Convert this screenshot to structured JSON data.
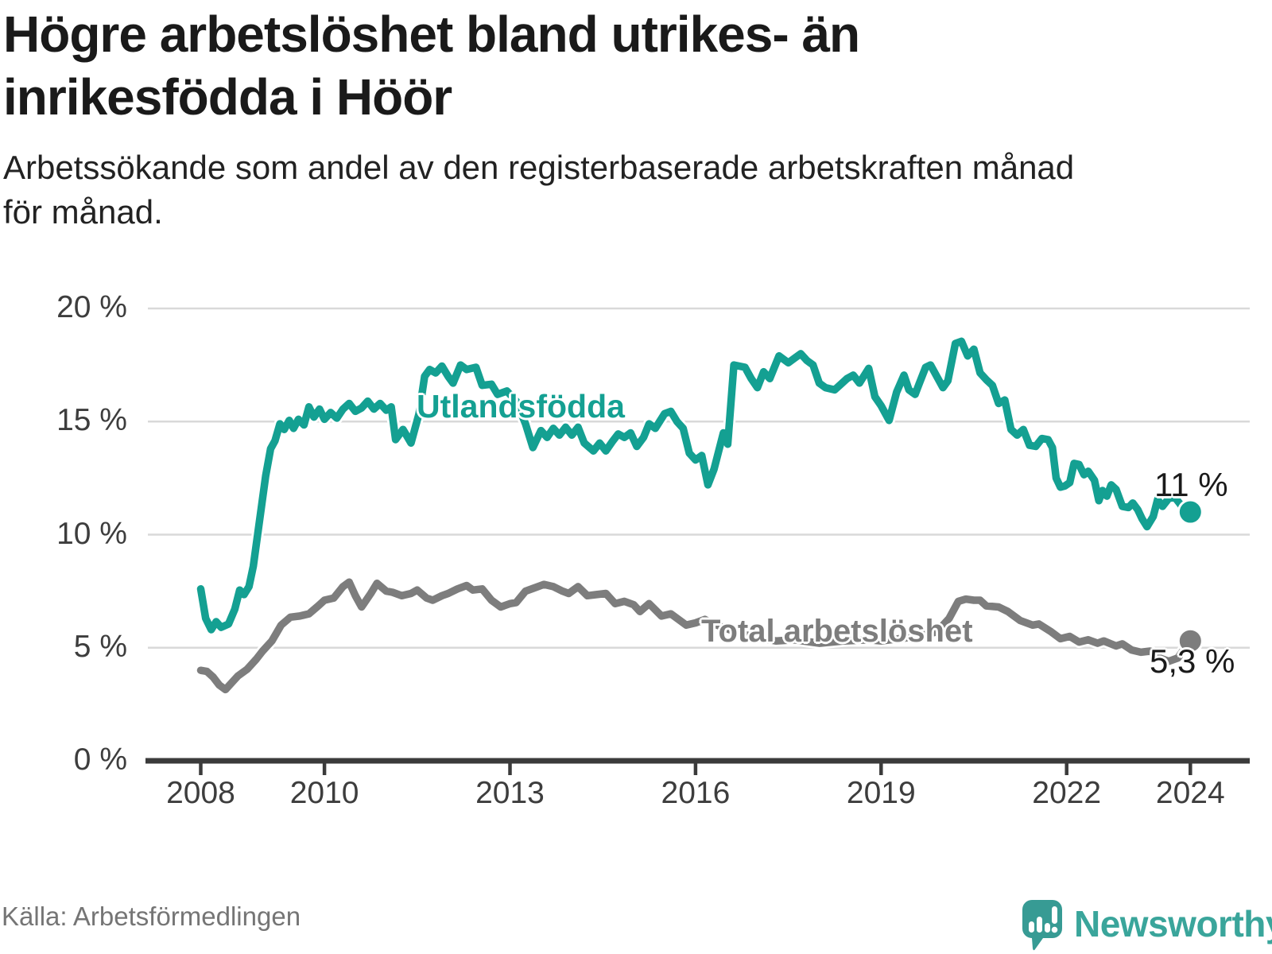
{
  "header": {
    "title": "Högre arbetslöshet bland utrikes- än\ninrikesfödda i Höör",
    "subtitle": "Arbetssökande som andel av den registerbaserade arbetskraften månad\nför månad."
  },
  "footer": {
    "source": "Källa: Arbetsförmedlingen",
    "brand": "Newsworthy"
  },
  "colors": {
    "utlandsfodda": "#14a092",
    "total": "#7d7d7d",
    "grid": "#d9d9d9",
    "axis": "#3b3b3b",
    "value_label": "#1a1a1a",
    "brand_icon": "#379b94",
    "brand_text": "#3aa59b"
  },
  "chart_data": {
    "type": "line",
    "title": "Högre arbetslöshet bland utrikes- än inrikesfödda i Höör",
    "xlabel": "",
    "ylabel": "",
    "ylim": [
      0,
      20
    ],
    "xlim": [
      2007.15,
      2024.95
    ],
    "grid": true,
    "legend_position": "inline-on-line",
    "y_ticks": [
      {
        "label": "20 %",
        "value": 20
      },
      {
        "label": "15 %",
        "value": 15
      },
      {
        "label": "10 %",
        "value": 10
      },
      {
        "label": "5 %",
        "value": 5
      },
      {
        "label": "0 %",
        "value": 0
      }
    ],
    "x_ticks": [
      {
        "label": "2008",
        "year": 2008
      },
      {
        "label": "2010",
        "year": 2010
      },
      {
        "label": "2013",
        "year": 2013
      },
      {
        "label": "2016",
        "year": 2016
      },
      {
        "label": "2019",
        "year": 2019
      },
      {
        "label": "2022",
        "year": 2022
      },
      {
        "label": "2024",
        "year": 2024
      }
    ],
    "series": [
      {
        "name": "Utlandsfödda",
        "label": "Utlandsfödda",
        "end_label": "11 %",
        "end_value": 11.0,
        "color_key": "utlandsfodda",
        "points": [
          [
            2008.0,
            7.6
          ],
          [
            2008.08,
            6.3
          ],
          [
            2008.17,
            5.8
          ],
          [
            2008.25,
            6.15
          ],
          [
            2008.33,
            5.9
          ],
          [
            2008.45,
            6.05
          ],
          [
            2008.55,
            6.7
          ],
          [
            2008.63,
            7.55
          ],
          [
            2008.7,
            7.35
          ],
          [
            2008.78,
            7.7
          ],
          [
            2008.85,
            8.6
          ],
          [
            2008.95,
            10.6
          ],
          [
            2009.05,
            12.6
          ],
          [
            2009.13,
            13.8
          ],
          [
            2009.2,
            14.15
          ],
          [
            2009.28,
            14.9
          ],
          [
            2009.35,
            14.65
          ],
          [
            2009.43,
            15.05
          ],
          [
            2009.5,
            14.7
          ],
          [
            2009.58,
            15.1
          ],
          [
            2009.67,
            14.85
          ],
          [
            2009.75,
            15.65
          ],
          [
            2009.83,
            15.2
          ],
          [
            2009.92,
            15.55
          ],
          [
            2010.0,
            15.1
          ],
          [
            2010.1,
            15.4
          ],
          [
            2010.2,
            15.15
          ],
          [
            2010.3,
            15.55
          ],
          [
            2010.4,
            15.8
          ],
          [
            2010.5,
            15.45
          ],
          [
            2010.6,
            15.6
          ],
          [
            2010.7,
            15.9
          ],
          [
            2010.8,
            15.55
          ],
          [
            2010.9,
            15.8
          ],
          [
            2011.0,
            15.5
          ],
          [
            2011.08,
            15.65
          ],
          [
            2011.15,
            14.2
          ],
          [
            2011.27,
            14.65
          ],
          [
            2011.4,
            14.05
          ],
          [
            2011.53,
            15.35
          ],
          [
            2011.62,
            17.0
          ],
          [
            2011.7,
            17.3
          ],
          [
            2011.8,
            17.15
          ],
          [
            2011.9,
            17.45
          ],
          [
            2012.0,
            17.0
          ],
          [
            2012.08,
            16.7
          ],
          [
            2012.2,
            17.5
          ],
          [
            2012.3,
            17.3
          ],
          [
            2012.45,
            17.4
          ],
          [
            2012.55,
            16.6
          ],
          [
            2012.7,
            16.65
          ],
          [
            2012.8,
            16.2
          ],
          [
            2012.95,
            16.35
          ],
          [
            2013.1,
            15.9
          ],
          [
            2013.25,
            14.9
          ],
          [
            2013.37,
            13.85
          ],
          [
            2013.5,
            14.6
          ],
          [
            2013.6,
            14.3
          ],
          [
            2013.7,
            14.7
          ],
          [
            2013.8,
            14.4
          ],
          [
            2013.9,
            14.75
          ],
          [
            2014.0,
            14.4
          ],
          [
            2014.1,
            14.75
          ],
          [
            2014.2,
            14.05
          ],
          [
            2014.35,
            13.7
          ],
          [
            2014.45,
            14.05
          ],
          [
            2014.55,
            13.7
          ],
          [
            2014.65,
            14.1
          ],
          [
            2014.75,
            14.45
          ],
          [
            2014.85,
            14.3
          ],
          [
            2014.95,
            14.5
          ],
          [
            2015.05,
            13.9
          ],
          [
            2015.16,
            14.3
          ],
          [
            2015.25,
            14.9
          ],
          [
            2015.35,
            14.7
          ],
          [
            2015.5,
            15.35
          ],
          [
            2015.6,
            15.45
          ],
          [
            2015.7,
            15.0
          ],
          [
            2015.8,
            14.7
          ],
          [
            2015.9,
            13.6
          ],
          [
            2016.0,
            13.3
          ],
          [
            2016.1,
            13.5
          ],
          [
            2016.2,
            12.2
          ],
          [
            2016.3,
            12.9
          ],
          [
            2016.45,
            14.5
          ],
          [
            2016.52,
            14.0
          ],
          [
            2016.62,
            17.5
          ],
          [
            2016.8,
            17.4
          ],
          [
            2016.9,
            16.9
          ],
          [
            2017.0,
            16.5
          ],
          [
            2017.1,
            17.2
          ],
          [
            2017.2,
            16.9
          ],
          [
            2017.35,
            17.9
          ],
          [
            2017.5,
            17.6
          ],
          [
            2017.6,
            17.8
          ],
          [
            2017.7,
            18.0
          ],
          [
            2017.8,
            17.7
          ],
          [
            2017.9,
            17.5
          ],
          [
            2018.0,
            16.7
          ],
          [
            2018.1,
            16.5
          ],
          [
            2018.25,
            16.4
          ],
          [
            2018.35,
            16.65
          ],
          [
            2018.45,
            16.9
          ],
          [
            2018.55,
            17.05
          ],
          [
            2018.65,
            16.7
          ],
          [
            2018.8,
            17.35
          ],
          [
            2018.9,
            16.1
          ],
          [
            2019.0,
            15.7
          ],
          [
            2019.13,
            15.05
          ],
          [
            2019.25,
            16.3
          ],
          [
            2019.37,
            17.05
          ],
          [
            2019.45,
            16.4
          ],
          [
            2019.55,
            16.2
          ],
          [
            2019.62,
            16.7
          ],
          [
            2019.72,
            17.4
          ],
          [
            2019.8,
            17.5
          ],
          [
            2019.9,
            17.0
          ],
          [
            2020.0,
            16.5
          ],
          [
            2020.08,
            16.8
          ],
          [
            2020.2,
            18.45
          ],
          [
            2020.3,
            18.55
          ],
          [
            2020.4,
            17.9
          ],
          [
            2020.5,
            18.2
          ],
          [
            2020.6,
            17.15
          ],
          [
            2020.7,
            16.85
          ],
          [
            2020.8,
            16.6
          ],
          [
            2020.9,
            15.8
          ],
          [
            2021.0,
            15.95
          ],
          [
            2021.1,
            14.65
          ],
          [
            2021.2,
            14.4
          ],
          [
            2021.3,
            14.65
          ],
          [
            2021.4,
            13.95
          ],
          [
            2021.5,
            13.9
          ],
          [
            2021.6,
            14.25
          ],
          [
            2021.7,
            14.2
          ],
          [
            2021.77,
            13.85
          ],
          [
            2021.83,
            12.5
          ],
          [
            2021.9,
            12.1
          ],
          [
            2021.97,
            12.15
          ],
          [
            2022.05,
            12.3
          ],
          [
            2022.12,
            13.15
          ],
          [
            2022.2,
            13.1
          ],
          [
            2022.28,
            12.65
          ],
          [
            2022.35,
            12.8
          ],
          [
            2022.45,
            12.4
          ],
          [
            2022.52,
            11.5
          ],
          [
            2022.58,
            11.95
          ],
          [
            2022.65,
            11.7
          ],
          [
            2022.72,
            12.2
          ],
          [
            2022.8,
            12.0
          ],
          [
            2022.9,
            11.25
          ],
          [
            2023.0,
            11.2
          ],
          [
            2023.07,
            11.4
          ],
          [
            2023.15,
            11.1
          ],
          [
            2023.22,
            10.7
          ],
          [
            2023.3,
            10.35
          ],
          [
            2023.4,
            10.8
          ],
          [
            2023.47,
            11.55
          ],
          [
            2023.55,
            11.25
          ],
          [
            2023.65,
            11.6
          ],
          [
            2023.75,
            11.65
          ],
          [
            2023.85,
            11.3
          ],
          [
            2023.93,
            11.05
          ],
          [
            2024.0,
            11.0
          ]
        ]
      },
      {
        "name": "Total arbetslöshet",
        "label": "Total arbetslöshet",
        "end_label": "5,3 %",
        "end_value": 5.3,
        "color_key": "total",
        "points": [
          [
            2008.0,
            4.0
          ],
          [
            2008.1,
            3.95
          ],
          [
            2008.2,
            3.7
          ],
          [
            2008.3,
            3.35
          ],
          [
            2008.4,
            3.15
          ],
          [
            2008.5,
            3.45
          ],
          [
            2008.6,
            3.75
          ],
          [
            2008.75,
            4.05
          ],
          [
            2008.9,
            4.5
          ],
          [
            2009.0,
            4.85
          ],
          [
            2009.15,
            5.3
          ],
          [
            2009.3,
            6.0
          ],
          [
            2009.45,
            6.35
          ],
          [
            2009.6,
            6.4
          ],
          [
            2009.75,
            6.5
          ],
          [
            2009.9,
            6.85
          ],
          [
            2010.0,
            7.1
          ],
          [
            2010.15,
            7.2
          ],
          [
            2010.3,
            7.7
          ],
          [
            2010.4,
            7.9
          ],
          [
            2010.5,
            7.3
          ],
          [
            2010.6,
            6.8
          ],
          [
            2010.75,
            7.4
          ],
          [
            2010.85,
            7.85
          ],
          [
            2011.0,
            7.5
          ],
          [
            2011.1,
            7.45
          ],
          [
            2011.25,
            7.3
          ],
          [
            2011.4,
            7.4
          ],
          [
            2011.5,
            7.55
          ],
          [
            2011.65,
            7.2
          ],
          [
            2011.75,
            7.1
          ],
          [
            2011.9,
            7.3
          ],
          [
            2012.0,
            7.4
          ],
          [
            2012.15,
            7.6
          ],
          [
            2012.3,
            7.75
          ],
          [
            2012.4,
            7.55
          ],
          [
            2012.55,
            7.6
          ],
          [
            2012.7,
            7.1
          ],
          [
            2012.85,
            6.8
          ],
          [
            2013.0,
            6.95
          ],
          [
            2013.1,
            7.0
          ],
          [
            2013.25,
            7.5
          ],
          [
            2013.4,
            7.65
          ],
          [
            2013.55,
            7.8
          ],
          [
            2013.7,
            7.7
          ],
          [
            2013.85,
            7.5
          ],
          [
            2013.95,
            7.4
          ],
          [
            2014.1,
            7.7
          ],
          [
            2014.25,
            7.3
          ],
          [
            2014.4,
            7.35
          ],
          [
            2014.55,
            7.4
          ],
          [
            2014.7,
            6.95
          ],
          [
            2014.85,
            7.05
          ],
          [
            2015.0,
            6.9
          ],
          [
            2015.1,
            6.6
          ],
          [
            2015.25,
            6.95
          ],
          [
            2015.45,
            6.4
          ],
          [
            2015.6,
            6.5
          ],
          [
            2015.75,
            6.2
          ],
          [
            2015.85,
            6.0
          ],
          [
            2016.0,
            6.1
          ],
          [
            2016.15,
            6.25
          ],
          [
            2016.3,
            6.05
          ],
          [
            2016.45,
            5.9
          ],
          [
            2016.6,
            5.75
          ],
          [
            2016.75,
            5.6
          ],
          [
            2017.0,
            5.45
          ],
          [
            2017.3,
            5.3
          ],
          [
            2017.6,
            5.35
          ],
          [
            2018.0,
            5.2
          ],
          [
            2018.4,
            5.3
          ],
          [
            2018.8,
            5.35
          ],
          [
            2019.0,
            5.3
          ],
          [
            2019.3,
            5.4
          ],
          [
            2019.6,
            5.5
          ],
          [
            2019.9,
            5.7
          ],
          [
            2020.1,
            6.3
          ],
          [
            2020.25,
            7.05
          ],
          [
            2020.37,
            7.15
          ],
          [
            2020.5,
            7.1
          ],
          [
            2020.6,
            7.1
          ],
          [
            2020.7,
            6.85
          ],
          [
            2020.9,
            6.8
          ],
          [
            2021.05,
            6.6
          ],
          [
            2021.25,
            6.2
          ],
          [
            2021.45,
            6.0
          ],
          [
            2021.55,
            6.05
          ],
          [
            2021.75,
            5.7
          ],
          [
            2021.9,
            5.4
          ],
          [
            2022.05,
            5.5
          ],
          [
            2022.2,
            5.25
          ],
          [
            2022.35,
            5.35
          ],
          [
            2022.5,
            5.2
          ],
          [
            2022.6,
            5.3
          ],
          [
            2022.8,
            5.08
          ],
          [
            2022.9,
            5.17
          ],
          [
            2023.05,
            4.9
          ],
          [
            2023.2,
            4.8
          ],
          [
            2023.35,
            4.85
          ],
          [
            2023.5,
            4.55
          ],
          [
            2023.65,
            4.4
          ],
          [
            2023.8,
            4.55
          ],
          [
            2023.9,
            4.95
          ],
          [
            2024.0,
            5.3
          ]
        ]
      }
    ]
  }
}
